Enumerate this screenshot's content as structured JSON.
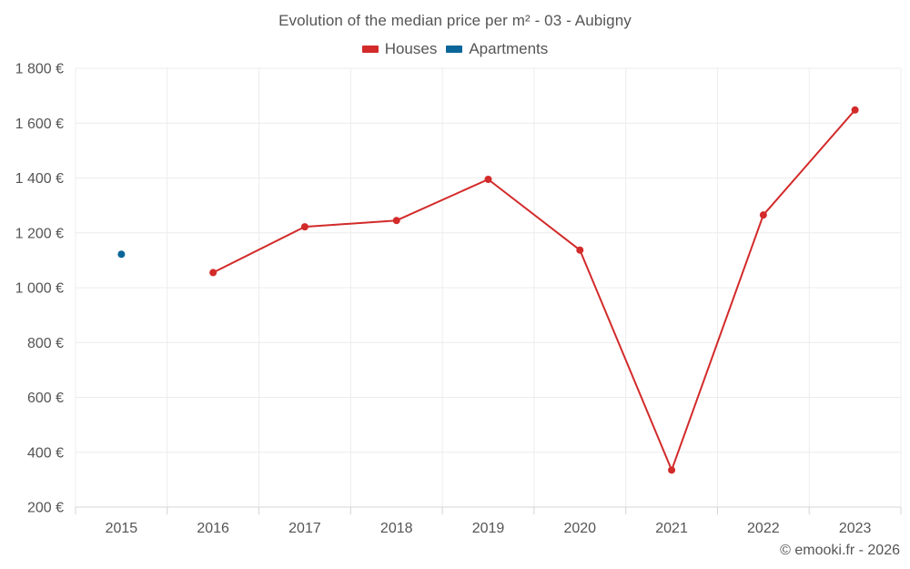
{
  "title": "Evolution of the median price per m² - 03 - Aubigny",
  "credit": "© emooki.fr - 2026",
  "colors": {
    "houses": "#d32a2a",
    "apartments": "#0b6699",
    "grid": "#ececec",
    "axis": "#d4d4d4",
    "text": "#555555"
  },
  "legend": [
    {
      "name": "Houses",
      "color": "#d32a2a"
    },
    {
      "name": "Apartments",
      "color": "#0b6699"
    }
  ],
  "chart_data": {
    "type": "line",
    "title": "Evolution of the median price per m² - 03 - Aubigny",
    "xlabel": "",
    "ylabel": "",
    "categories": [
      "2015",
      "2016",
      "2017",
      "2018",
      "2019",
      "2020",
      "2021",
      "2022",
      "2023"
    ],
    "y_ticks": [
      200,
      400,
      600,
      800,
      1000,
      1200,
      1400,
      1600,
      1800
    ],
    "y_tick_labels": [
      "200 €",
      "400 €",
      "600 €",
      "800 €",
      "1 000 €",
      "1 200 €",
      "1 400 €",
      "1 600 €",
      "1 800 €"
    ],
    "ylim": [
      200,
      1800
    ],
    "grid": true,
    "legend_position": "top-center",
    "series": [
      {
        "name": "Houses",
        "color": "#d32a2a",
        "values": [
          null,
          1055,
          1222,
          1245,
          1395,
          1137,
          335,
          1265,
          1648
        ]
      },
      {
        "name": "Apartments",
        "color": "#0b6699",
        "values": [
          1122,
          null,
          null,
          null,
          null,
          null,
          null,
          null,
          null
        ]
      }
    ]
  }
}
